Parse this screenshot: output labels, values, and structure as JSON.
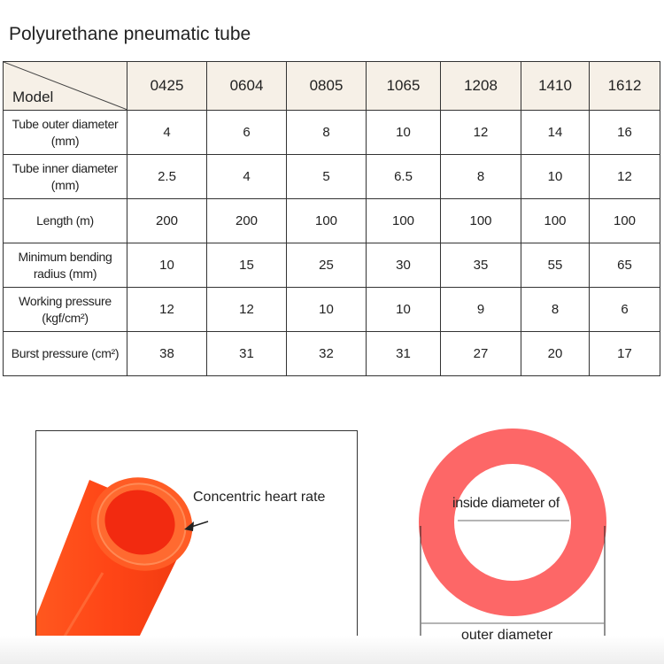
{
  "title": "Polyurethane pneumatic tube",
  "table": {
    "corner_label": "Model",
    "models": [
      "0425",
      "0604",
      "0805",
      "1065",
      "1208",
      "1410",
      "1612"
    ],
    "rows": [
      {
        "label": "Tube outer diameter (mm)",
        "values": [
          "4",
          "6",
          "8",
          "10",
          "12",
          "14",
          "16"
        ]
      },
      {
        "label": "Tube inner diameter (mm)",
        "values": [
          "2.5",
          "4",
          "5",
          "6.5",
          "8",
          "10",
          "12"
        ]
      },
      {
        "label": "Length (m)",
        "values": [
          "200",
          "200",
          "100",
          "100",
          "100",
          "100",
          "100"
        ]
      },
      {
        "label": "Minimum bending radius (mm)",
        "values": [
          "10",
          "15",
          "25",
          "30",
          "35",
          "55",
          "65"
        ]
      },
      {
        "label": "Working pressure (kgf/cm²)",
        "values": [
          "12",
          "12",
          "10",
          "10",
          "9",
          "8",
          "6"
        ]
      },
      {
        "label": "Burst pressure (cm²)",
        "values": [
          "38",
          "31",
          "32",
          "31",
          "27",
          "20",
          "17"
        ]
      }
    ]
  },
  "photo": {
    "annotation": "Concentric heart rate",
    "tube_color": "#ff4a1c"
  },
  "diagram": {
    "inner_label": "inside diameter of",
    "outer_label": "outer diameter",
    "ring_color": "#fd6767"
  }
}
